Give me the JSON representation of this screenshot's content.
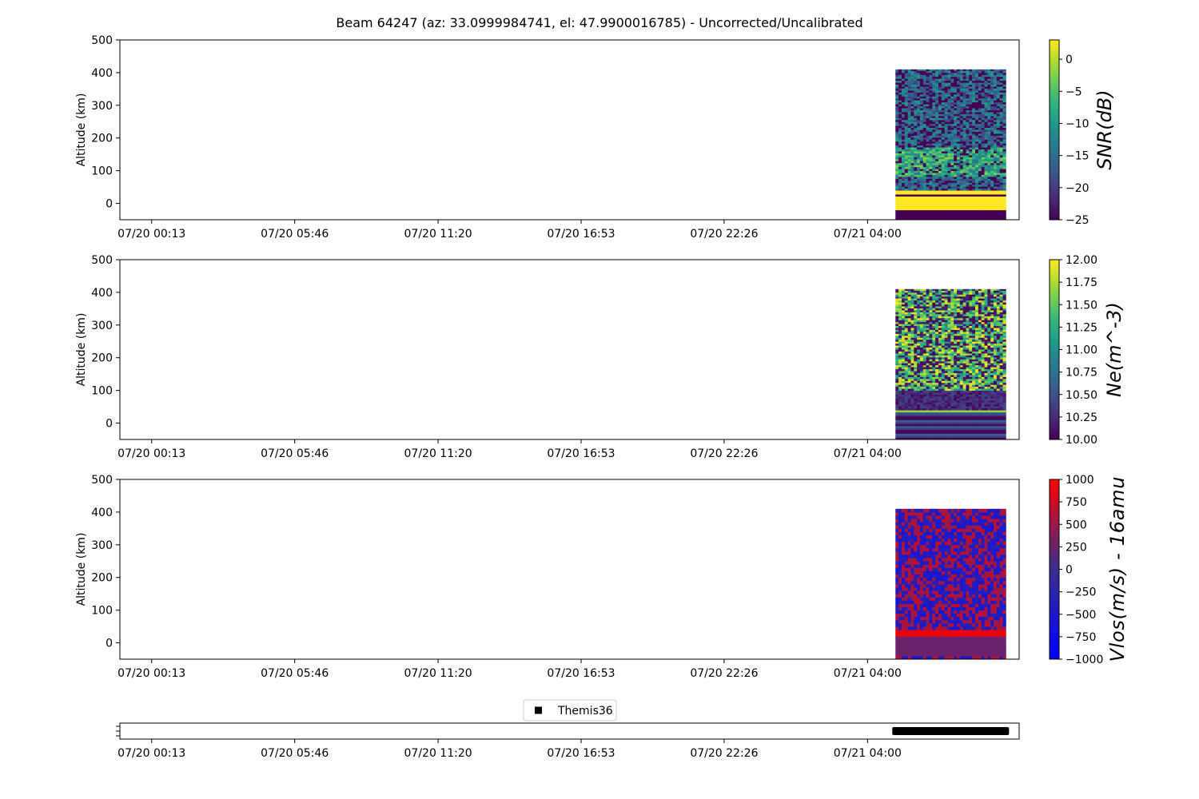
{
  "figure": {
    "title": "Beam 64247 (az: 33.0999984741, el: 47.9900016785) - Uncorrected/Uncalibrated",
    "time_ticks": [
      "07/20 00:13",
      "07/20 05:46",
      "07/20 11:20",
      "07/20 16:53",
      "07/20 22:26",
      "07/21 04:00"
    ]
  },
  "chart_data": [
    {
      "type": "heatmap",
      "title": "",
      "xlabel": "",
      "ylabel": "Altitude (km)",
      "x_range": [
        "07/19 22:59",
        "07/21 09:53"
      ],
      "ylim": [
        -50,
        500
      ],
      "yticks": [
        0,
        100,
        200,
        300,
        400,
        500
      ],
      "data_extent": {
        "time_start": "07/21 05:05",
        "time_end": "07/21 09:22",
        "alt_min": -50,
        "alt_max": 410
      },
      "colormap": "viridis",
      "colorbar": {
        "label": "SNR(dB)",
        "vmin": -25,
        "vmax": 3,
        "ticks": [
          -25,
          -20,
          -15,
          -10,
          -5,
          0
        ]
      },
      "bands": [
        {
          "alt_from": 40,
          "alt_to": 410,
          "value": "noise -25..-5, enhanced -12 near 100-150 km"
        },
        {
          "alt_from": 30,
          "alt_to": 40,
          "value": 3
        },
        {
          "alt_from": 23,
          "alt_to": 30,
          "value": -25
        },
        {
          "alt_from": -20,
          "alt_to": 23,
          "value": 3
        },
        {
          "alt_from": -50,
          "alt_to": -20,
          "value": -25
        }
      ]
    },
    {
      "type": "heatmap",
      "title": "",
      "xlabel": "",
      "ylabel": "Altitude (km)",
      "x_range": [
        "07/19 22:59",
        "07/21 09:53"
      ],
      "ylim": [
        -50,
        500
      ],
      "yticks": [
        0,
        100,
        200,
        300,
        400,
        500
      ],
      "data_extent": {
        "time_start": "07/21 05:05",
        "time_end": "07/21 09:22",
        "alt_min": -50,
        "alt_max": 410
      },
      "colormap": "viridis",
      "colorbar": {
        "label": "Ne(m^-3)",
        "vmin": 10.0,
        "vmax": 12.0,
        "ticks": [
          10.0,
          10.25,
          10.5,
          10.75,
          11.0,
          11.25,
          11.5,
          11.75,
          12.0
        ]
      },
      "bands": [
        {
          "alt_from": 100,
          "alt_to": 410,
          "value": "noise 10.5..12.0"
        },
        {
          "alt_from": 40,
          "alt_to": 100,
          "value": "low 10.0..10.4"
        },
        {
          "alt_from": 35,
          "alt_to": 40,
          "value": 11.7
        },
        {
          "alt_from": -50,
          "alt_to": 35,
          "value": "stripes 10.0..10.6"
        }
      ]
    },
    {
      "type": "heatmap",
      "title": "",
      "xlabel": "",
      "ylabel": "Altitude (km)",
      "x_range": [
        "07/19 22:59",
        "07/21 09:53"
      ],
      "ylim": [
        -50,
        500
      ],
      "yticks": [
        0,
        100,
        200,
        300,
        400,
        500
      ],
      "data_extent": {
        "time_start": "07/21 05:05",
        "time_end": "07/21 09:22",
        "alt_min": -50,
        "alt_max": 410
      },
      "colormap": "blue-red",
      "colorbar": {
        "label": "Vlos(m/s) - 16amu",
        "vmin": -1000,
        "vmax": 1000,
        "ticks": [
          -1000,
          -750,
          -500,
          -250,
          0,
          250,
          500,
          750,
          1000
        ]
      },
      "bands": [
        {
          "alt_from": 35,
          "alt_to": 410,
          "value": "mixed -600..+700"
        },
        {
          "alt_from": 15,
          "alt_to": 35,
          "value": 900
        },
        {
          "alt_from": -40,
          "alt_to": 15,
          "value": 250
        },
        {
          "alt_from": -50,
          "alt_to": -40,
          "value": "mixed"
        }
      ]
    },
    {
      "type": "scatter",
      "legend": {
        "label": "Themis36",
        "placement": "top-center"
      },
      "series": [
        {
          "name": "Themis36",
          "time_start": "07/21 05:05",
          "time_end": "07/21 09:22",
          "marker": "square",
          "color": "#000000"
        }
      ]
    }
  ]
}
